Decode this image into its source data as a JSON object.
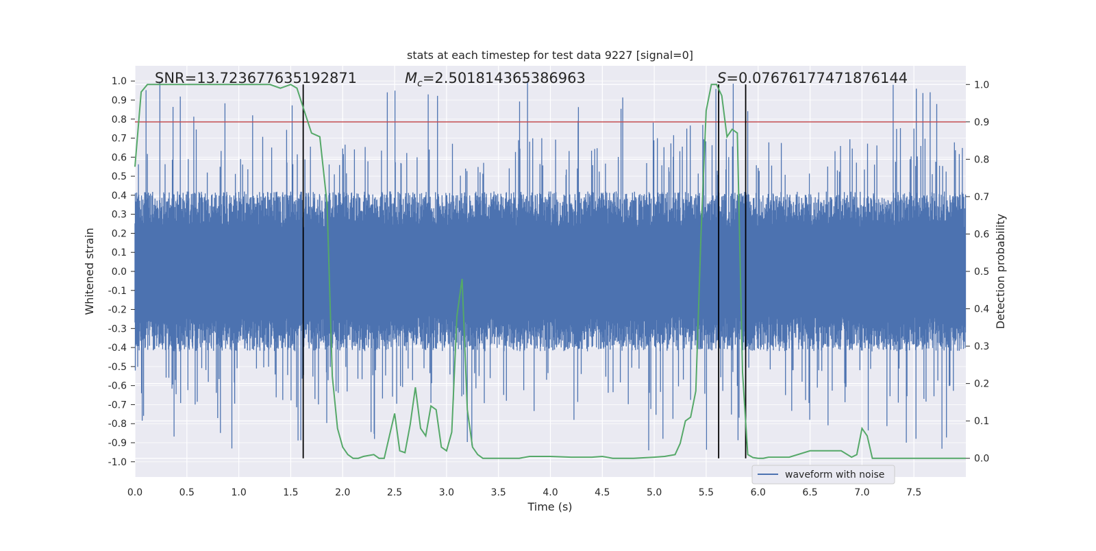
{
  "chart_data": {
    "type": "line",
    "title": "stats at each timestep for test data 9227 [signal=0]",
    "xlabel": "Time (s)",
    "ylabel_left": "Whitened strain",
    "ylabel_right": "Detection probability",
    "xlim": [
      0.0,
      8.0
    ],
    "ylim_left": [
      -1.08,
      1.08
    ],
    "ylim_right": [
      -0.05,
      1.05
    ],
    "x_ticks": [
      0.0,
      0.5,
      1.0,
      1.5,
      2.0,
      2.5,
      3.0,
      3.5,
      4.0,
      4.5,
      5.0,
      5.5,
      6.0,
      6.5,
      7.0,
      7.5
    ],
    "x_tick_labels": [
      "0.0",
      "0.5",
      "1.0",
      "1.5",
      "2.0",
      "2.5",
      "3.0",
      "3.5",
      "4.0",
      "4.5",
      "5.0",
      "5.5",
      "6.0",
      "6.5",
      "7.0",
      "7.5"
    ],
    "y_left_ticks": [
      1.0,
      0.9,
      0.8,
      0.7,
      0.6,
      0.5,
      0.4,
      0.3,
      0.2,
      0.1,
      0.0,
      -0.1,
      -0.2,
      -0.3,
      -0.4,
      -0.5,
      -0.6,
      -0.7,
      -0.8,
      -0.9,
      -1.0
    ],
    "y_left_tick_labels": [
      "1.0",
      "0.9",
      "0.8",
      "0.7",
      "0.6",
      "0.5",
      "0.4",
      "0.3",
      "0.2",
      "0.1",
      "0.0",
      "-0.1",
      "-0.2",
      "-0.3",
      "-0.4",
      "-0.5",
      "-0.6",
      "-0.7",
      "-0.8",
      "-0.9",
      "-1.0"
    ],
    "y_right_ticks": [
      1.0,
      0.9,
      0.8,
      0.7,
      0.6,
      0.5,
      0.4,
      0.3,
      0.2,
      0.1,
      0.0
    ],
    "y_right_tick_labels": [
      "1.0",
      "0.9",
      "0.8",
      "0.7",
      "0.6",
      "0.5",
      "0.4",
      "0.3",
      "0.2",
      "0.1",
      "0.0"
    ],
    "annotations": {
      "snr": "SNR=13.723677635192871",
      "mc_symbol": "M",
      "mc_sub": "c",
      "mc_value": "=2.501814365386963",
      "s_symbol": "S",
      "s_value": "=0.07676177471876144"
    },
    "legend": {
      "placement": "lower-right",
      "entries": [
        "waveform with noise"
      ]
    },
    "threshold_line": {
      "axis": "right",
      "value": 0.9,
      "color": "#c44e52"
    },
    "vertical_lines_s": [
      1.62,
      5.62,
      5.88
    ],
    "waveform": {
      "name": "waveform with noise",
      "color": "#4c72b0",
      "duration_s": 8.0,
      "typical_amplitude": 0.42,
      "peak_max": 1.0,
      "peak_min": -0.97
    },
    "series": [
      {
        "axis": "right",
        "color": "#55a868",
        "x": [
          0.0,
          0.06,
          0.12,
          0.2,
          0.3,
          0.4,
          0.6,
          0.8,
          1.0,
          1.2,
          1.3,
          1.4,
          1.5,
          1.56,
          1.63,
          1.7,
          1.78,
          1.85,
          1.9,
          1.95,
          2.0,
          2.05,
          2.1,
          2.15,
          2.2,
          2.3,
          2.35,
          2.4,
          2.45,
          2.5,
          2.55,
          2.6,
          2.65,
          2.7,
          2.75,
          2.8,
          2.85,
          2.9,
          2.95,
          3.0,
          3.05,
          3.1,
          3.15,
          3.2,
          3.25,
          3.3,
          3.35,
          3.4,
          3.45,
          3.5,
          3.6,
          3.7,
          3.8,
          4.0,
          4.2,
          4.4,
          4.5,
          4.6,
          4.8,
          5.0,
          5.1,
          5.2,
          5.25,
          5.3,
          5.35,
          5.4,
          5.45,
          5.5,
          5.55,
          5.6,
          5.65,
          5.7,
          5.75,
          5.8,
          5.85,
          5.9,
          5.95,
          6.0,
          6.05,
          6.1,
          6.15,
          6.2,
          6.3,
          6.5,
          6.8,
          6.9,
          6.95,
          7.0,
          7.05,
          7.1,
          7.15,
          7.2,
          7.25,
          7.3,
          7.5,
          7.7,
          8.0
        ],
        "y": [
          0.78,
          0.98,
          1.0,
          1.0,
          1.0,
          1.0,
          1.0,
          1.0,
          1.0,
          1.0,
          1.0,
          0.99,
          1.0,
          0.99,
          0.93,
          0.87,
          0.86,
          0.68,
          0.22,
          0.08,
          0.03,
          0.01,
          0.0,
          0.0,
          0.005,
          0.01,
          0.0,
          0.0,
          0.06,
          0.12,
          0.02,
          0.015,
          0.09,
          0.19,
          0.08,
          0.06,
          0.14,
          0.13,
          0.03,
          0.02,
          0.07,
          0.38,
          0.48,
          0.13,
          0.03,
          0.01,
          0.0,
          0.0,
          0.0,
          0.0,
          0.0,
          0.0,
          0.005,
          0.005,
          0.003,
          0.003,
          0.005,
          0.0,
          0.0,
          0.003,
          0.005,
          0.01,
          0.04,
          0.1,
          0.11,
          0.18,
          0.6,
          0.93,
          1.0,
          1.0,
          0.97,
          0.86,
          0.88,
          0.87,
          0.23,
          0.01,
          0.002,
          0.0,
          0.0,
          0.003,
          0.003,
          0.003,
          0.003,
          0.02,
          0.02,
          0.003,
          0.01,
          0.08,
          0.06,
          0.0,
          0.0,
          0.0,
          0.0,
          0.0,
          0.0,
          0.0,
          0.0
        ]
      }
    ]
  }
}
